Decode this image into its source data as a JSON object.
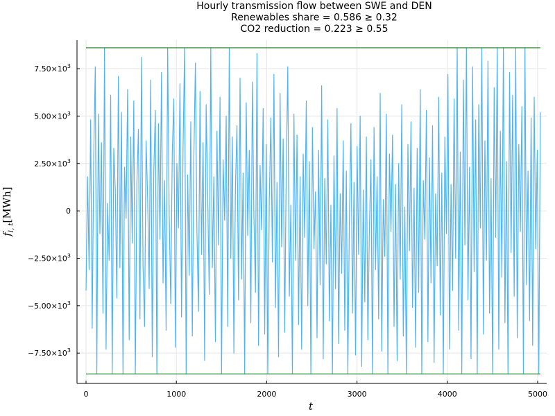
{
  "chart_data": {
    "type": "line",
    "title": [
      "Hourly transmission flow between SWE and DEN",
      "Renewables share = 0.586 ≥ 0.32",
      "CO2 reduction = 0.223 ≥ 0.55"
    ],
    "xlabel": "t",
    "ylabel_main": "f",
    "ylabel_sub": "l, t",
    "ylabel_unit": "[MWh]",
    "xlim": [
      -100,
      5100
    ],
    "ylim": [
      -9100,
      9000
    ],
    "xticks": [
      {
        "value": 0,
        "label": "0"
      },
      {
        "value": 1000,
        "label": "1000"
      },
      {
        "value": 2000,
        "label": "2000"
      },
      {
        "value": 3000,
        "label": "3000"
      },
      {
        "value": 4000,
        "label": "4000"
      },
      {
        "value": 5000,
        "label": "5000"
      }
    ],
    "yticks": [
      {
        "value": 7500,
        "mantissa": "7.50×10",
        "exp": "3"
      },
      {
        "value": 5000,
        "mantissa": "5.00×10",
        "exp": "3"
      },
      {
        "value": 2500,
        "mantissa": "2.50×10",
        "exp": "3"
      },
      {
        "value": 0,
        "mantissa": "0",
        "exp": ""
      },
      {
        "value": -2500,
        "mantissa": "−2.50×10",
        "exp": "3"
      },
      {
        "value": -5000,
        "mantissa": "−5.00×10",
        "exp": "3"
      },
      {
        "value": -7500,
        "mantissa": "−7.50×10",
        "exp": "3"
      }
    ],
    "grid": true,
    "legend": "none",
    "series": [
      {
        "color": "#4fb3f4",
        "x_start": 0,
        "x_end": 5030,
        "sample_step": 25,
        "values": [
          -4200,
          1800,
          -3100,
          4800,
          -6200,
          2900,
          7600,
          -8600,
          5100,
          -1200,
          3600,
          -5400,
          8600,
          -7300,
          400,
          -2600,
          6100,
          -8600,
          3300,
          1100,
          -4600,
          7100,
          -3000,
          5200,
          -8600,
          2300,
          -400,
          6400,
          -6800,
          3900,
          -1700,
          5800,
          -8600,
          1400,
          4300,
          -5700,
          8100,
          -2900,
          -6100,
          3700,
          700,
          -4100,
          6900,
          -7700,
          2100,
          5300,
          -8600,
          4600,
          -1500,
          7300,
          -3800,
          1600,
          -6300,
          8600,
          -200,
          -4900,
          3100,
          5900,
          -7200,
          2500,
          -900,
          6700,
          -5600,
          3400,
          8600,
          -8600,
          1900,
          -3400,
          4700,
          -6600,
          2800,
          7800,
          -1100,
          -5300,
          6300,
          -2300,
          3600,
          -7900,
          5600,
          800,
          -4400,
          8600,
          -3000,
          1800,
          -6900,
          4200,
          -1800,
          6000,
          -8600,
          2700,
          -500,
          5000,
          -6100,
          8600,
          -2500,
          3900,
          -7500,
          1200,
          4500,
          -4700,
          7000,
          -3600,
          2000,
          -8600,
          5700,
          -1300,
          3200,
          -5900,
          6800,
          -300,
          -4300,
          8300,
          -7100,
          2400,
          -1000,
          5400,
          -6500,
          3500,
          -8600,
          600,
          4900,
          -2700,
          7200,
          -5100,
          1500,
          -7700,
          6200,
          -1900,
          3800,
          -6400,
          2200,
          7600,
          -4500,
          300,
          -8600,
          5100,
          -2600,
          4000,
          -6000,
          1800,
          -7300,
          3000,
          -1400,
          5800,
          -5000,
          2600,
          -8600,
          4400,
          -2000,
          1000,
          -6700,
          3200,
          -3900,
          6600,
          -7800,
          1700,
          -2800,
          4800,
          -5800,
          300,
          -8600,
          2900,
          -4100,
          5400,
          -7000,
          900,
          -3300,
          3700,
          -6300,
          2100,
          -8600,
          -500,
          4600,
          -5400,
          1500,
          -7600,
          3400,
          -2300,
          5000,
          -8200,
          1100,
          -4800,
          3900,
          -6800,
          -900,
          2700,
          -8600,
          4400,
          -3100,
          1800,
          -5700,
          6200,
          -7400,
          600,
          -2400,
          5100,
          -8600,
          3000,
          -1100,
          4000,
          -6100,
          1400,
          -7900,
          2500,
          -3600,
          5600,
          -6600,
          200,
          -8600,
          3500,
          -2100,
          4700,
          -5100,
          1200,
          -7200,
          3300,
          -4300,
          6400,
          -8600,
          1600,
          -1500,
          5300,
          -6900,
          2800,
          -3800,
          4500,
          -8000,
          900,
          -2900,
          6000,
          -5500,
          2000,
          -8600,
          3900,
          -1200,
          7200,
          -7300,
          1400,
          -4200,
          5900,
          -2500,
          8600,
          -6300,
          3100,
          -8600,
          6900,
          -1800,
          8600,
          -4700,
          2300,
          -7800,
          7600,
          -3200,
          4800,
          -8600,
          5600,
          -900,
          8600,
          -6500,
          3700,
          -2600,
          7900,
          -5400,
          1700,
          -8600,
          6500,
          -1400,
          8600,
          -7300,
          4200,
          -3500,
          8600,
          -5900,
          2600,
          -8600,
          7300,
          -2200,
          6100,
          -4500,
          8600,
          -6700,
          3500,
          -1100,
          5500,
          -8600,
          8600,
          -3900,
          2100,
          -5800,
          4900,
          -7100,
          6000,
          -2000,
          3200,
          -8600,
          5200
        ]
      }
    ],
    "limit_lines": [
      {
        "value": 8600,
        "color": "#1a7a1a"
      },
      {
        "value": -8600,
        "color": "#1a7a1a"
      }
    ]
  }
}
